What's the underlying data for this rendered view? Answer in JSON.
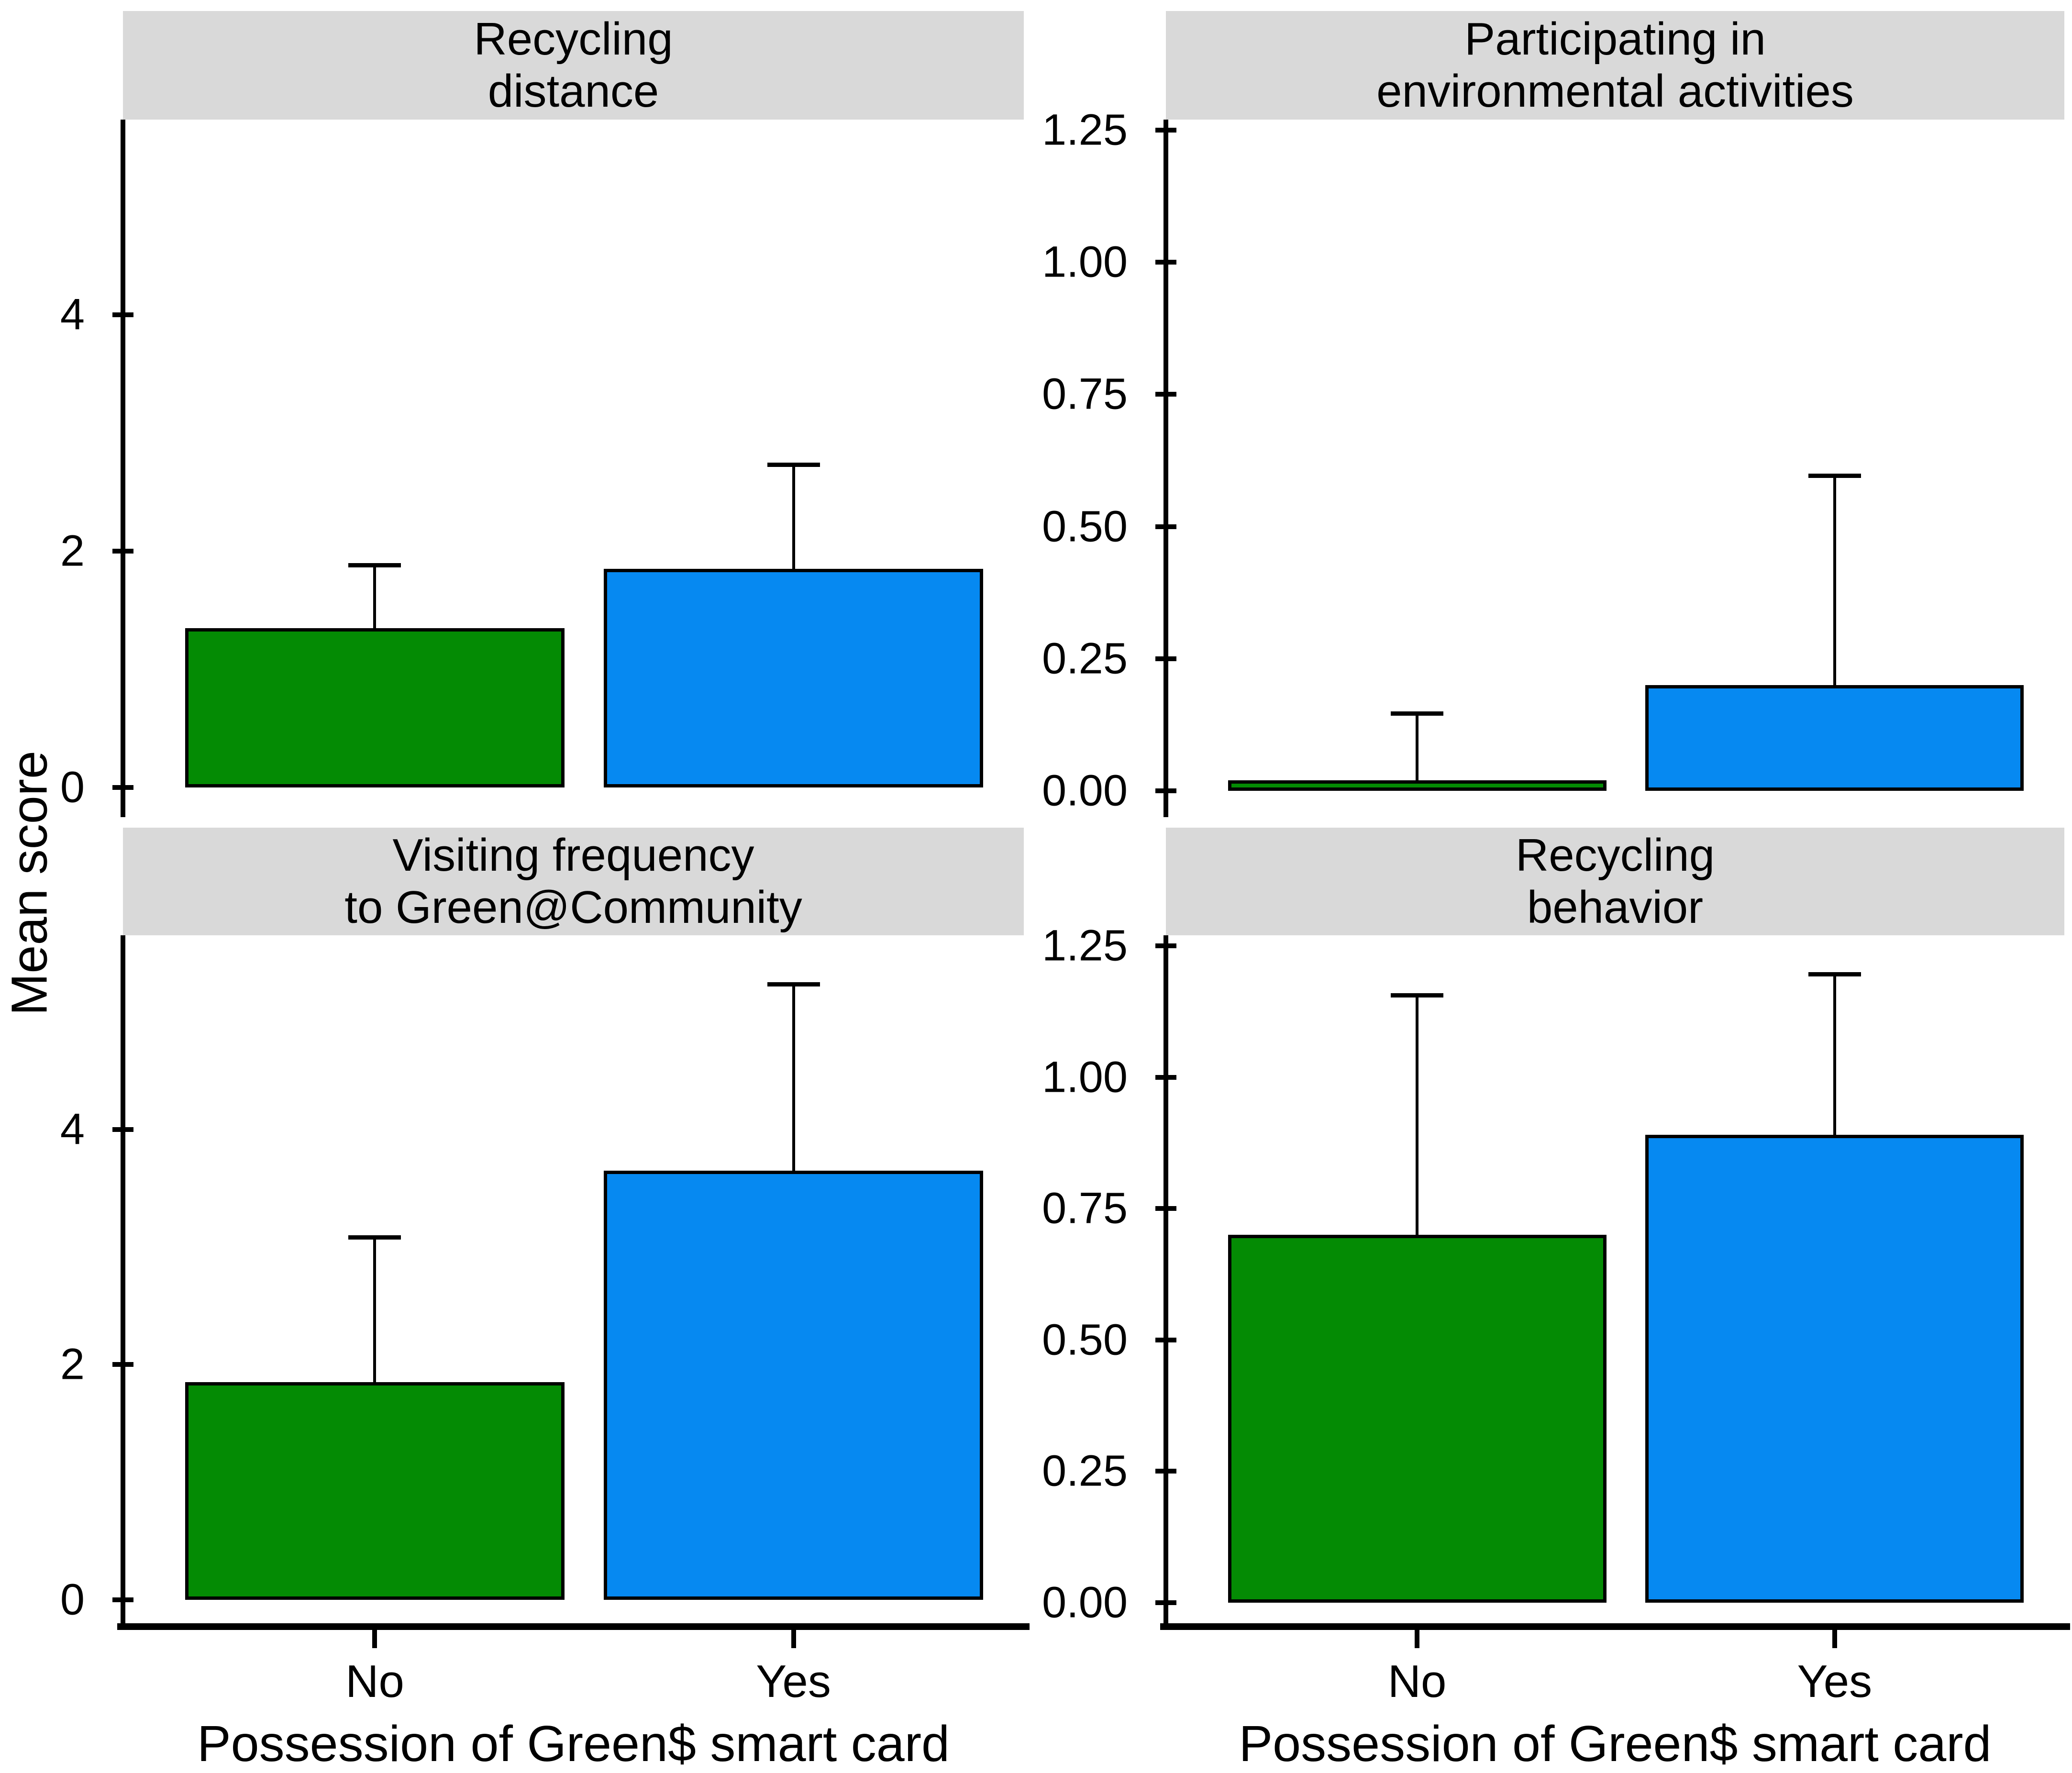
{
  "figure": {
    "ylabel": "Mean score",
    "xlabel": "Possession of Green$ smart card",
    "categories": [
      "No",
      "Yes"
    ],
    "colors": {
      "no_bar": "#048B04",
      "yes_bar": "#0689F1",
      "bar_border": "#000000",
      "strip_background": "#D9D9D9",
      "axis": "#000000"
    }
  },
  "chart_data": [
    {
      "type": "bar",
      "title": "Recycling\ndistance",
      "categories": [
        "No",
        "Yes"
      ],
      "values": [
        1.35,
        1.85
      ],
      "error_top": [
        1.9,
        2.75
      ],
      "ylim": [
        -0.25,
        5.65
      ],
      "yticks": [
        0,
        2,
        4
      ],
      "ytick_labels": [
        "0",
        "2",
        "4"
      ],
      "show_xaxis": false,
      "bar_colors": [
        "#048B04",
        "#0689F1"
      ]
    },
    {
      "type": "bar",
      "title": "Participating in\nenvironmental activities",
      "categories": [
        "No",
        "Yes"
      ],
      "values": [
        0.02,
        0.2
      ],
      "error_top": [
        0.15,
        0.6
      ],
      "ylim": [
        -0.05,
        1.27
      ],
      "yticks": [
        0,
        0.25,
        0.5,
        0.75,
        1,
        1.25
      ],
      "ytick_labels": [
        "0.00",
        "0.25",
        "0.50",
        "0.75",
        "1.00",
        "1.25"
      ],
      "show_xaxis": false,
      "bar_colors": [
        "#048B04",
        "#0689F1"
      ]
    },
    {
      "type": "bar",
      "title": "Visiting frequency\nto Green@Community",
      "categories": [
        "No",
        "Yes"
      ],
      "values": [
        1.85,
        3.65
      ],
      "error_top": [
        3.1,
        5.25
      ],
      "ylim": [
        -0.25,
        5.65
      ],
      "yticks": [
        0,
        2,
        4
      ],
      "ytick_labels": [
        "0",
        "2",
        "4"
      ],
      "show_xaxis": true,
      "bar_colors": [
        "#048B04",
        "#0689F1"
      ]
    },
    {
      "type": "bar",
      "title": "Recycling\nbehavior",
      "categories": [
        "No",
        "Yes"
      ],
      "values": [
        0.7,
        0.89
      ],
      "error_top": [
        1.16,
        1.2
      ],
      "ylim": [
        -0.05,
        1.27
      ],
      "yticks": [
        0,
        0.25,
        0.5,
        0.75,
        1,
        1.25
      ],
      "ytick_labels": [
        "0.00",
        "0.25",
        "0.50",
        "0.75",
        "1.00",
        "1.25"
      ],
      "show_xaxis": true,
      "bar_colors": [
        "#048B04",
        "#0689F1"
      ]
    }
  ]
}
